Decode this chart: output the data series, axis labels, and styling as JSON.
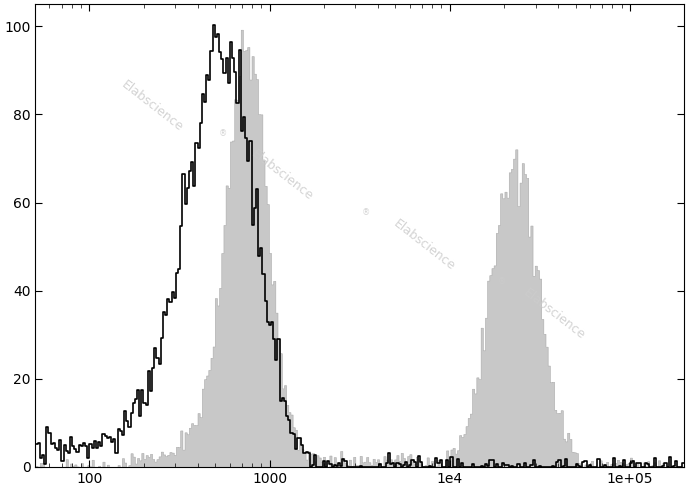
{
  "xlim_log": [
    1.7,
    5.3
  ],
  "ylim": [
    0,
    105
  ],
  "yticks": [
    0,
    20,
    40,
    60,
    80,
    100
  ],
  "xticks_log": [
    2,
    3,
    4,
    5
  ],
  "background_color": "#ffffff",
  "unstained_color": "black",
  "stained_fill_color": "#c8c8c8",
  "stained_edge_color": "#aaaaaa",
  "watermark_text": "Elabscience",
  "watermark_color": "#cccccc",
  "n_bins": 300,
  "seed": 7
}
